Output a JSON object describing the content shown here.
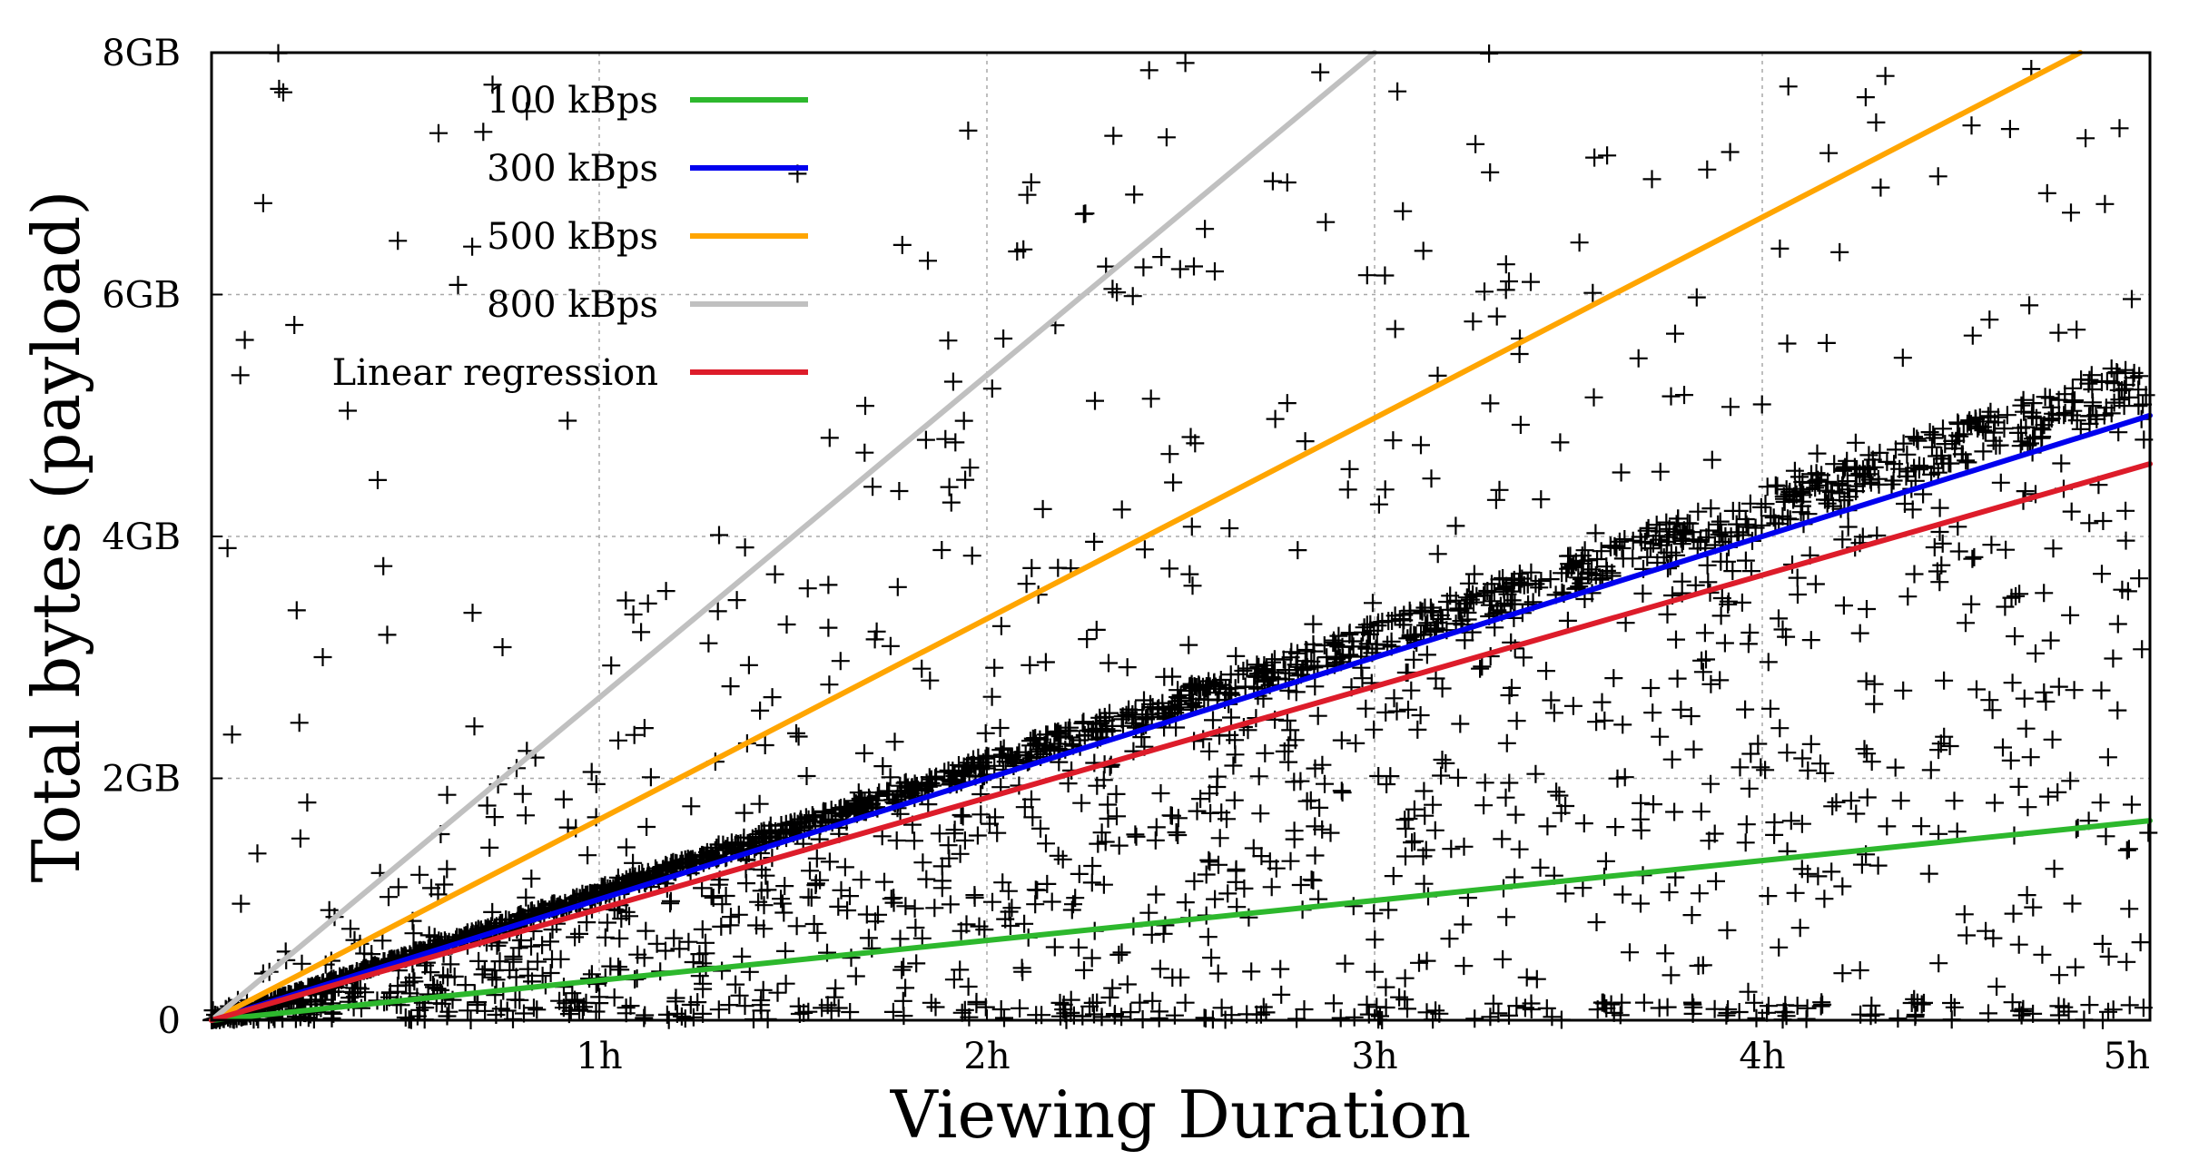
{
  "chart_data": {
    "type": "scatter",
    "title": "",
    "xlabel": "Viewing Duration",
    "ylabel": "Total bytes (payload)",
    "xlim": [
      0,
      5
    ],
    "ylim": [
      0,
      8
    ],
    "x_unit": "hours",
    "y_unit": "GB",
    "grid": true,
    "legend_position": "top-left",
    "x_ticks": [
      {
        "value": 1,
        "label": "1h"
      },
      {
        "value": 2,
        "label": "2h"
      },
      {
        "value": 3,
        "label": "3h"
      },
      {
        "value": 4,
        "label": "4h"
      },
      {
        "value": 5,
        "label": "5h"
      }
    ],
    "y_ticks": [
      {
        "value": 0,
        "label": "0"
      },
      {
        "value": 2,
        "label": "2GB"
      },
      {
        "value": 4,
        "label": "4GB"
      },
      {
        "value": 6,
        "label": "6GB"
      },
      {
        "value": 8,
        "label": "8GB"
      }
    ],
    "series": [
      {
        "name": "100 kBps",
        "kind": "line",
        "color": "#2db82d",
        "x": [
          0,
          5
        ],
        "y": [
          0,
          1.65
        ]
      },
      {
        "name": "300 kBps",
        "kind": "line",
        "color": "#0000ee",
        "x": [
          0,
          5
        ],
        "y": [
          0,
          5.0
        ]
      },
      {
        "name": "500 kBps",
        "kind": "line",
        "color": "#ffa500",
        "x": [
          0,
          4.82
        ],
        "y": [
          0,
          8.0
        ]
      },
      {
        "name": "800 kBps",
        "kind": "line",
        "color": "#c0c0c0",
        "x": [
          0,
          3.0
        ],
        "y": [
          0,
          8.0
        ]
      },
      {
        "name": "Linear regression",
        "kind": "line",
        "color": "#dd1c2a",
        "x": [
          0,
          5
        ],
        "y": [
          0,
          4.6
        ]
      }
    ],
    "scatter_description": {
      "marker": "plus",
      "color": "#000000",
      "approx_points": 3000,
      "dense_ridge_slope_gb_per_h": 1.1,
      "ridge_end_point": {
        "x": 5,
        "y": 5.55
      }
    }
  }
}
